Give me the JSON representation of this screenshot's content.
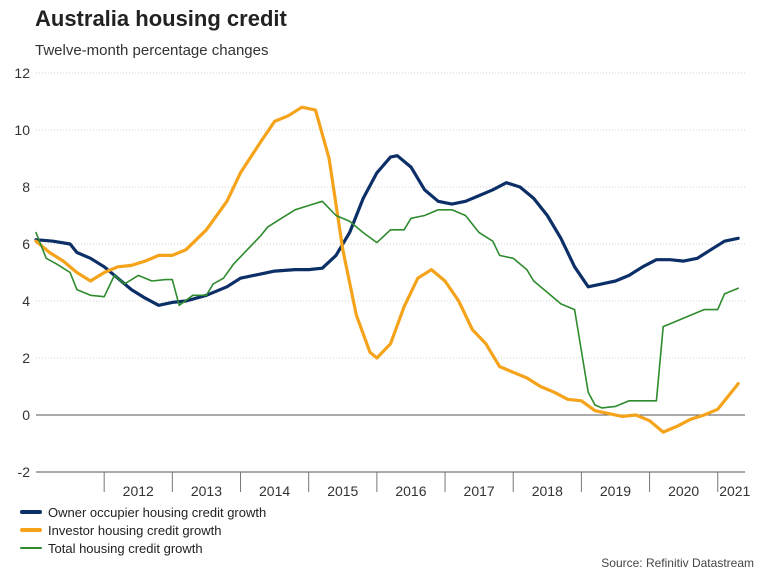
{
  "header": {
    "title": "Australia housing credit",
    "subtitle": "Twelve-month percentage changes"
  },
  "source": "Source: Refinitiv Datastream",
  "legend": {
    "owner": "Owner occupier housing credit growth",
    "investor": "Investor housing credit growth",
    "total": "Total housing credit growth"
  },
  "colors": {
    "owner": "#0b2f66",
    "investor": "#f5a31a",
    "total": "#2e8b2e",
    "grid": "#d0d0d0",
    "zero": "#555555"
  },
  "chart_data": {
    "type": "line",
    "title": "Australia housing credit",
    "subtitle": "Twelve-month percentage changes",
    "xlabel": "",
    "ylabel": "",
    "ylim": [
      -2,
      12
    ],
    "xlim": [
      2011.0,
      2021.4
    ],
    "yticks": [
      "-2",
      "0",
      "2",
      "4",
      "6",
      "8",
      "10",
      "12"
    ],
    "xticks": [
      {
        "label": "2012",
        "value": 2012.5
      },
      {
        "label": "2013",
        "value": 2013.5
      },
      {
        "label": "2014",
        "value": 2014.5
      },
      {
        "label": "2015",
        "value": 2015.5
      },
      {
        "label": "2016",
        "value": 2016.5
      },
      {
        "label": "2017",
        "value": 2017.5
      },
      {
        "label": "2018",
        "value": 2018.5
      },
      {
        "label": "2019",
        "value": 2019.5
      },
      {
        "label": "2020",
        "value": 2020.5
      },
      {
        "label": "2021",
        "value": 2021.25
      }
    ],
    "grid": true,
    "series": [
      {
        "name": "Owner occupier housing credit growth",
        "x": [
          2011.0,
          2011.25,
          2011.5,
          2011.6,
          2011.8,
          2012.0,
          2012.2,
          2012.4,
          2012.6,
          2012.8,
          2013.0,
          2013.2,
          2013.5,
          2013.8,
          2014.0,
          2014.3,
          2014.5,
          2014.8,
          2015.0,
          2015.2,
          2015.4,
          2015.6,
          2015.8,
          2016.0,
          2016.2,
          2016.3,
          2016.5,
          2016.7,
          2016.9,
          2017.1,
          2017.3,
          2017.5,
          2017.7,
          2017.9,
          2018.1,
          2018.3,
          2018.5,
          2018.7,
          2018.9,
          2019.1,
          2019.3,
          2019.5,
          2019.7,
          2019.9,
          2020.1,
          2020.3,
          2020.5,
          2020.7,
          2020.9,
          2021.1,
          2021.3
        ],
        "y": [
          6.15,
          6.1,
          6.0,
          5.7,
          5.5,
          5.2,
          4.8,
          4.4,
          4.1,
          3.85,
          3.95,
          4.0,
          4.2,
          4.5,
          4.8,
          4.95,
          5.05,
          5.1,
          5.1,
          5.15,
          5.6,
          6.4,
          7.6,
          8.5,
          9.05,
          9.1,
          8.7,
          7.9,
          7.5,
          7.4,
          7.5,
          7.7,
          7.9,
          8.15,
          8.0,
          7.6,
          7.0,
          6.2,
          5.2,
          4.5,
          4.6,
          4.7,
          4.9,
          5.2,
          5.45,
          5.45,
          5.4,
          5.5,
          5.8,
          6.1,
          6.2
        ]
      },
      {
        "name": "Investor housing credit growth",
        "x": [
          2011.0,
          2011.2,
          2011.4,
          2011.6,
          2011.8,
          2012.0,
          2012.2,
          2012.4,
          2012.6,
          2012.8,
          2013.0,
          2013.2,
          2013.5,
          2013.8,
          2014.0,
          2014.3,
          2014.5,
          2014.7,
          2014.9,
          2015.1,
          2015.3,
          2015.5,
          2015.7,
          2015.9,
          2016.0,
          2016.2,
          2016.4,
          2016.6,
          2016.8,
          2017.0,
          2017.2,
          2017.4,
          2017.6,
          2017.8,
          2018.0,
          2018.2,
          2018.4,
          2018.6,
          2018.8,
          2019.0,
          2019.2,
          2019.4,
          2019.6,
          2019.8,
          2020.0,
          2020.2,
          2020.4,
          2020.6,
          2020.8,
          2021.0,
          2021.2,
          2021.3
        ],
        "y": [
          6.1,
          5.7,
          5.4,
          5.0,
          4.7,
          5.0,
          5.2,
          5.25,
          5.4,
          5.6,
          5.6,
          5.8,
          6.5,
          7.5,
          8.5,
          9.6,
          10.3,
          10.5,
          10.8,
          10.7,
          9.0,
          5.8,
          3.5,
          2.2,
          2.0,
          2.5,
          3.8,
          4.8,
          5.1,
          4.7,
          4.0,
          3.0,
          2.5,
          1.7,
          1.5,
          1.3,
          1.0,
          0.8,
          0.55,
          0.5,
          0.15,
          0.05,
          -0.05,
          0.0,
          -0.2,
          -0.6,
          -0.4,
          -0.15,
          0.0,
          0.2,
          0.8,
          1.1
        ]
      },
      {
        "name": "Total housing credit growth",
        "x": [
          2011.0,
          2011.15,
          2011.3,
          2011.5,
          2011.6,
          2011.8,
          2012.0,
          2012.15,
          2012.3,
          2012.5,
          2012.7,
          2012.9,
          2013.0,
          2013.1,
          2013.3,
          2013.5,
          2013.6,
          2013.75,
          2013.9,
          2014.1,
          2014.3,
          2014.4,
          2014.6,
          2014.8,
          2015.0,
          2015.2,
          2015.4,
          2015.6,
          2015.8,
          2016.0,
          2016.2,
          2016.4,
          2016.5,
          2016.7,
          2016.9,
          2017.1,
          2017.3,
          2017.5,
          2017.7,
          2017.8,
          2018.0,
          2018.2,
          2018.3,
          2018.5,
          2018.7,
          2018.9,
          2019.1,
          2019.2,
          2019.3,
          2019.5,
          2019.7,
          2019.9,
          2020.1,
          2020.2,
          2020.4,
          2020.6,
          2020.8,
          2021.0,
          2021.1,
          2021.3
        ],
        "y": [
          6.4,
          5.5,
          5.3,
          5.0,
          4.4,
          4.2,
          4.15,
          4.9,
          4.6,
          4.9,
          4.7,
          4.75,
          4.75,
          3.85,
          4.2,
          4.2,
          4.6,
          4.8,
          5.3,
          5.8,
          6.3,
          6.6,
          6.9,
          7.2,
          7.35,
          7.5,
          7.0,
          6.8,
          6.4,
          6.05,
          6.5,
          6.5,
          6.9,
          7.0,
          7.2,
          7.2,
          7.0,
          6.4,
          6.1,
          5.6,
          5.5,
          5.1,
          4.7,
          4.3,
          3.9,
          3.7,
          0.8,
          0.35,
          0.25,
          0.3,
          0.5,
          0.5,
          0.5,
          3.1,
          3.3,
          3.5,
          3.7,
          3.7,
          4.25,
          4.45
        ]
      }
    ]
  }
}
